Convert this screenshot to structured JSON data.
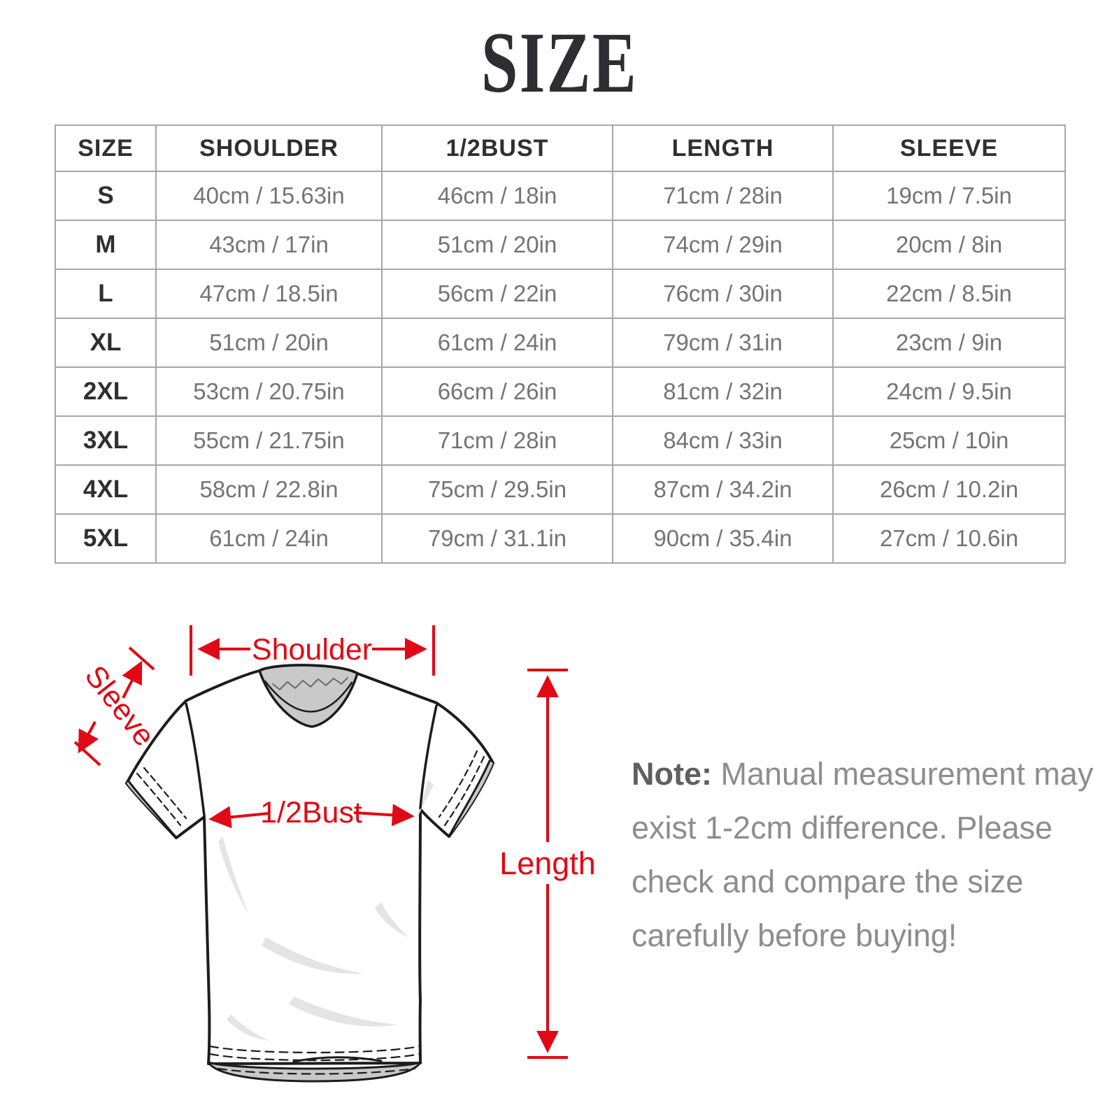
{
  "page": {
    "title": "SIZE"
  },
  "colors": {
    "accent_red": "#e00915",
    "table_border": "#a6a6a6",
    "header_text": "#2f2f2f",
    "cell_text": "#747474",
    "note_text": "#8d8d8d",
    "note_prefix_text": "#5f5f5f",
    "shade_gray": "#c9c9c9"
  },
  "size_table": {
    "columns": [
      "SIZE",
      "SHOULDER",
      "1/2BUST",
      "LENGTH",
      "SLEEVE"
    ],
    "rows": [
      [
        "S",
        "40cm / 15.63in",
        "46cm / 18in",
        "71cm / 28in",
        "19cm / 7.5in"
      ],
      [
        "M",
        "43cm / 17in",
        "51cm / 20in",
        "74cm / 29in",
        "20cm / 8in"
      ],
      [
        "L",
        "47cm / 18.5in",
        "56cm / 22in",
        "76cm / 30in",
        "22cm / 8.5in"
      ],
      [
        "XL",
        "51cm / 20in",
        "61cm / 24in",
        "79cm / 31in",
        "23cm / 9in"
      ],
      [
        "2XL",
        "53cm / 20.75in",
        "66cm / 26in",
        "81cm / 32in",
        "24cm / 9.5in"
      ],
      [
        "3XL",
        "55cm / 21.75in",
        "71cm / 28in",
        "84cm / 33in",
        "25cm / 10in"
      ],
      [
        "4XL",
        "58cm / 22.8in",
        "75cm / 29.5in",
        "87cm / 34.2in",
        "26cm / 10.2in"
      ],
      [
        "5XL",
        "61cm / 24in",
        "79cm / 31.1in",
        "90cm / 35.4in",
        "27cm / 10.6in"
      ]
    ]
  },
  "diagram": {
    "labels": {
      "shoulder": "Shoulder",
      "sleeve": "Sleeve",
      "half_bust": "1/2Bust",
      "length": "Length"
    }
  },
  "note": {
    "prefix": "Note:",
    "line1_rest": " Manual measurement may",
    "lines": [
      "exist 1-2cm difference. Please",
      "check and compare the size",
      "carefully before buying!"
    ]
  }
}
